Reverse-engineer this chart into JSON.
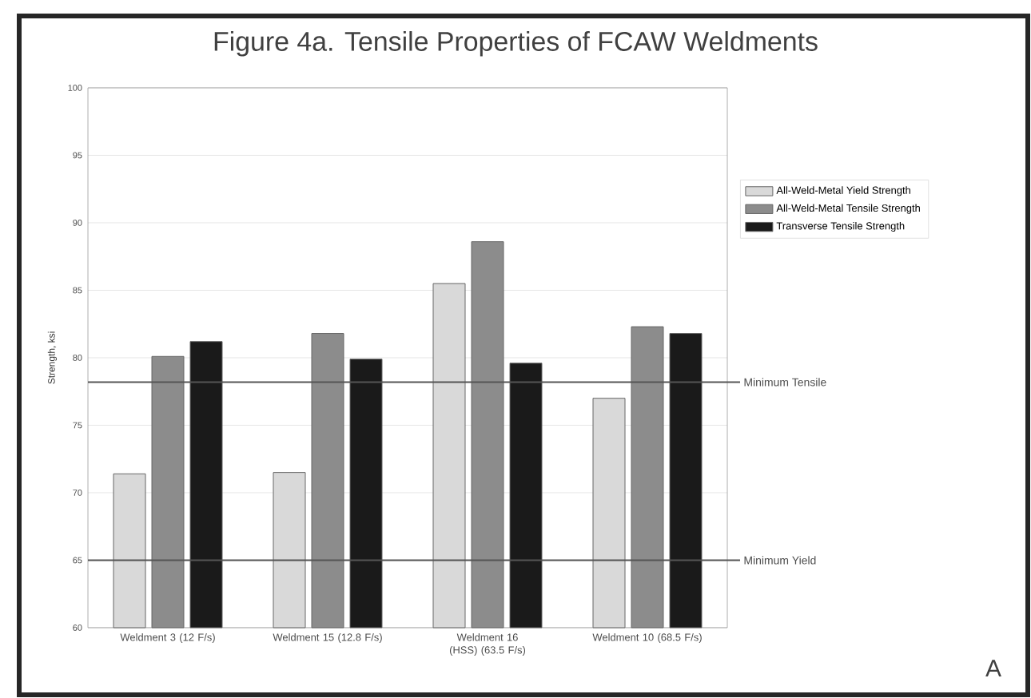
{
  "chart_data": {
    "type": "bar",
    "title": "Figure 4a. Tensile Properties of FCAW Weldments",
    "ylabel": "Strength, ksi",
    "categories": [
      "Weldment 3 (12 F/s)",
      "Weldment 15 (12.8 F/s)",
      "Weldment 16 (HSS) (63.5 F/s)",
      "Weldment 10 (68.5 F/s)"
    ],
    "series": [
      {
        "name": "All-Weld-Metal Yield Strength",
        "color": "#d9d9d9",
        "values": [
          71.4,
          71.5,
          85.5,
          77.0
        ]
      },
      {
        "name": "All-Weld-Metal Tensile Strength",
        "color": "#8c8c8c",
        "values": [
          80.1,
          81.8,
          88.6,
          82.3
        ]
      },
      {
        "name": "Transverse Tensile Strength",
        "color": "#1a1a1a",
        "values": [
          81.2,
          79.9,
          79.6,
          81.8
        ]
      }
    ],
    "ylim": [
      60,
      100
    ],
    "yticks": [
      60,
      65,
      70,
      75,
      80,
      85,
      90,
      95,
      100
    ],
    "grid": "y",
    "legend": "right",
    "ref_lines": [
      {
        "axis": "y",
        "value": 78.2,
        "label": "Minimum Tensile",
        "color": "#555555"
      },
      {
        "axis": "y",
        "value": 65,
        "label": "Minimum Yield",
        "color": "#555555"
      }
    ],
    "annotations": [
      "A"
    ]
  }
}
